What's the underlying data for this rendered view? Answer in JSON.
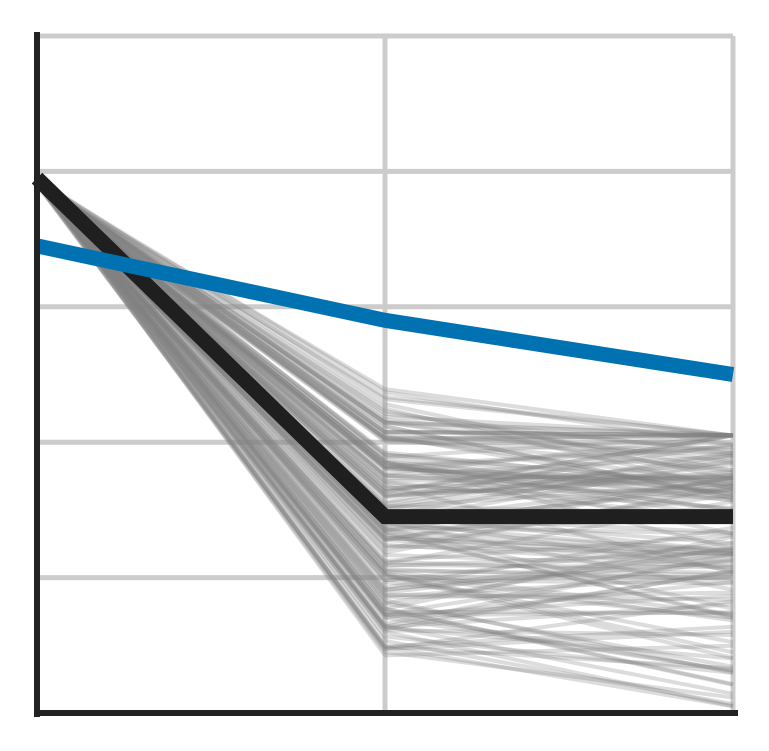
{
  "chart_data": {
    "type": "line",
    "title": "",
    "xlabel": "",
    "ylabel": "",
    "x": [
      0,
      1,
      2
    ],
    "xlim": [
      0,
      2
    ],
    "ylim": [
      0,
      5
    ],
    "grid": true,
    "legend": "none",
    "colors": {
      "highlight": "#0072b2",
      "median": "#1f1f1f",
      "ensemble": "#808080",
      "grid": "#cccccc",
      "axis": "#222222"
    },
    "series": [
      {
        "role": "highlight",
        "values": [
          3.45,
          2.9,
          2.5
        ]
      },
      {
        "role": "median",
        "values": [
          3.95,
          1.45,
          1.45
        ]
      }
    ],
    "ensemble": {
      "count": 150,
      "start_value": 3.95,
      "mid_range": [
        0.4,
        2.4
      ],
      "end_range": [
        0.05,
        2.05
      ],
      "opacity": 0.28
    }
  }
}
